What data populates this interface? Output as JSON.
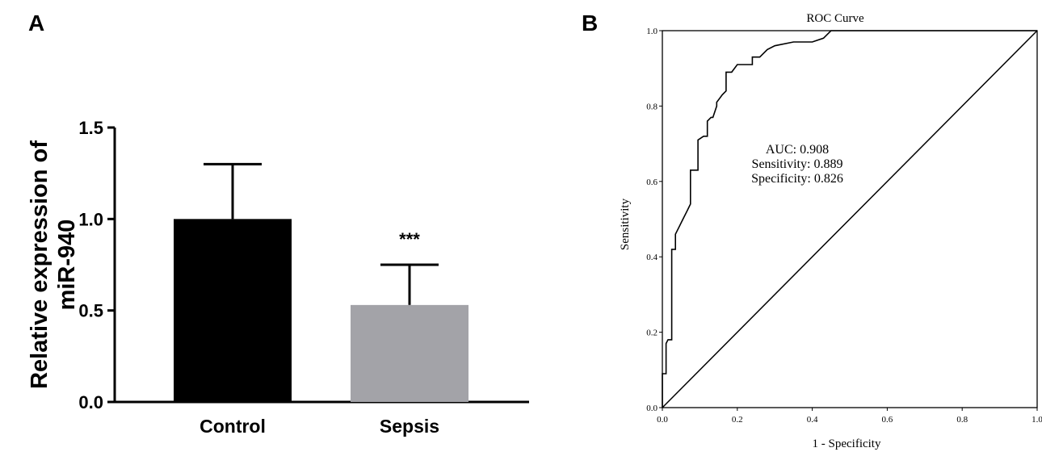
{
  "panels": {
    "a_label": "A",
    "b_label": "B"
  },
  "chart_data": [
    {
      "type": "bar",
      "ylabel_lines": [
        "Relative expression of",
        "miR-940"
      ],
      "xlabel": "",
      "categories": [
        "Control",
        "Sepsis"
      ],
      "values": [
        1.0,
        0.53
      ],
      "errors": [
        0.3,
        0.22
      ],
      "ylim": [
        0,
        1.5
      ],
      "yticks": [
        "0.0",
        "0.5",
        "1.0",
        "1.5"
      ],
      "ytick_values": [
        0,
        0.5,
        1.0,
        1.5
      ],
      "colors": [
        "#000000",
        "#a3a3a8"
      ],
      "annotation": {
        "category_index": 1,
        "text": "***"
      },
      "grid": false
    },
    {
      "type": "line",
      "title": "ROC Curve",
      "xlabel": "1 - Specificity",
      "ylabel": "Sensitivity",
      "xlim": [
        0,
        1
      ],
      "ylim": [
        0,
        1
      ],
      "xticks": [
        "0.0",
        "0.2",
        "0.4",
        "0.6",
        "0.8",
        "1.0"
      ],
      "xtick_values": [
        0,
        0.2,
        0.4,
        0.6,
        0.8,
        1.0
      ],
      "yticks": [
        "0.0",
        "0.2",
        "0.4",
        "0.6",
        "0.8",
        "1.0"
      ],
      "ytick_values": [
        0,
        0.2,
        0.4,
        0.6,
        0.8,
        1.0
      ],
      "series": [
        {
          "x": [
            0,
            0,
            0.01,
            0.01,
            0.015,
            0.025,
            0.025,
            0.035,
            0.035,
            0.045,
            0.055,
            0.065,
            0.07,
            0.075,
            0.075,
            0.095,
            0.095,
            0.11,
            0.12,
            0.12,
            0.13,
            0.135,
            0.145,
            0.145,
            0.16,
            0.17,
            0.17,
            0.185,
            0.2,
            0.2,
            0.24,
            0.24,
            0.26,
            0.28,
            0.3,
            0.35,
            0.38,
            0.4,
            0.43,
            0.45,
            1.0
          ],
          "y": [
            0,
            0.09,
            0.09,
            0.17,
            0.18,
            0.18,
            0.42,
            0.42,
            0.46,
            0.48,
            0.5,
            0.52,
            0.53,
            0.54,
            0.63,
            0.63,
            0.71,
            0.72,
            0.72,
            0.76,
            0.77,
            0.77,
            0.8,
            0.81,
            0.83,
            0.84,
            0.89,
            0.89,
            0.91,
            0.91,
            0.91,
            0.93,
            0.93,
            0.95,
            0.96,
            0.97,
            0.97,
            0.97,
            0.98,
            1.0,
            1.0
          ]
        }
      ],
      "reference_line": {
        "x": [
          0,
          1
        ],
        "y": [
          0,
          1
        ]
      },
      "annotation_lines": [
        "AUC: 0.908",
        "Sensitivity: 0.889",
        "Specificity: 0.826"
      ],
      "grid": false
    }
  ]
}
